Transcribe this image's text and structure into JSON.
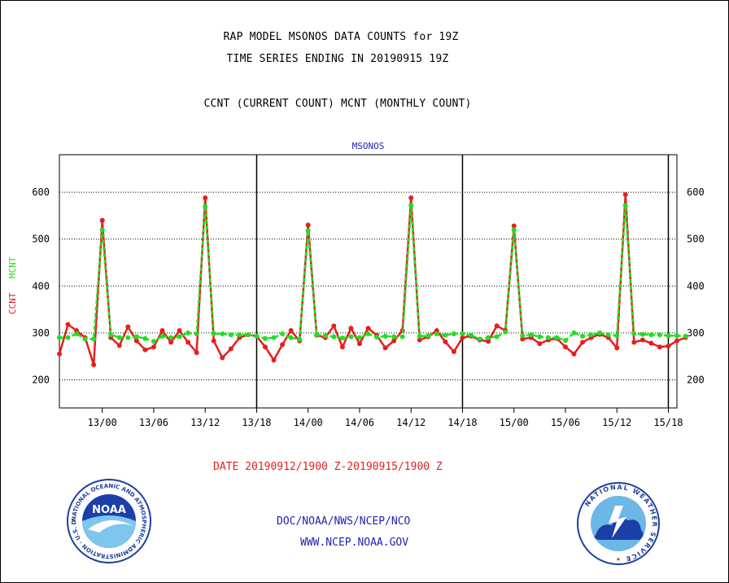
{
  "titles": {
    "line1": "RAP MODEL MSONOS DATA COUNTS for 19Z",
    "line2": "TIME SERIES ENDING IN 20190915 19Z",
    "line3": "CCNT (CURRENT COUNT) MCNT (MONTHLY COUNT)"
  },
  "date_range": "DATE 20190912/1900 Z-20190915/1900 Z",
  "footer": {
    "org": "DOC/NOAA/NWS/NCEP/NCO",
    "url": "WWW.NCEP.NOAA.GOV"
  },
  "logos": {
    "left": {
      "icon": "noaa-logo",
      "text": "NOAA",
      "ring_text": "NATIONAL OCEANIC AND ATMOSPHERIC ADMINISTRATION · U.S. DEPARTMENT OF COMMERCE"
    },
    "right": {
      "icon": "nws-logo",
      "ring_text": "NATIONAL WEATHER SERVICE"
    }
  },
  "colors": {
    "ccnt": "#e61e1e",
    "mcnt": "#22dd22",
    "subtitle": "#1f1fb4",
    "axis": "#000000"
  },
  "chart_data": {
    "type": "line",
    "title": "MSONOS",
    "ylabel_left": [
      "CCNT",
      "MCNT"
    ],
    "ylim": [
      140,
      680
    ],
    "yticks": [
      200,
      300,
      400,
      500,
      600
    ],
    "grid": true,
    "xticks": [
      "13/00",
      "13/06",
      "13/12",
      "13/18",
      "14/00",
      "14/06",
      "14/12",
      "14/18",
      "15/00",
      "15/06",
      "15/12",
      "15/18"
    ],
    "x_hours_range": [
      -5,
      67
    ],
    "day_boundaries_hours": [
      18,
      42,
      66
    ],
    "series": [
      {
        "name": "CCNT",
        "color": "#e61e1e",
        "values": [
          255,
          318,
          305,
          290,
          232,
          540,
          290,
          273,
          313,
          283,
          264,
          270,
          305,
          280,
          305,
          280,
          258,
          588,
          283,
          247,
          266,
          290,
          296,
          293,
          270,
          242,
          275,
          305,
          283,
          530,
          295,
          290,
          315,
          270,
          310,
          277,
          310,
          295,
          268,
          283,
          305,
          588,
          285,
          292,
          305,
          281,
          260,
          290,
          293,
          285,
          282,
          315,
          305,
          528,
          287,
          290,
          277,
          285,
          288,
          270,
          255,
          280,
          290,
          297,
          290,
          268,
          595,
          280,
          285,
          278,
          270,
          272,
          283,
          290
        ]
      },
      {
        "name": "MCNT",
        "color": "#22dd22",
        "values": [
          290,
          290,
          298,
          287,
          287,
          520,
          296,
          290,
          290,
          292,
          288,
          282,
          293,
          290,
          292,
          300,
          298,
          570,
          298,
          298,
          296,
          296,
          296,
          293,
          288,
          290,
          298,
          290,
          286,
          518,
          296,
          294,
          292,
          289,
          292,
          290,
          298,
          291,
          293,
          292,
          292,
          572,
          293,
          294,
          298,
          295,
          298,
          298,
          295,
          287,
          290,
          292,
          302,
          520,
          294,
          296,
          292,
          290,
          290,
          284,
          300,
          293,
          296,
          300,
          296,
          294,
          572,
          298,
          297,
          296,
          296,
          294,
          294,
          293
        ]
      }
    ]
  }
}
